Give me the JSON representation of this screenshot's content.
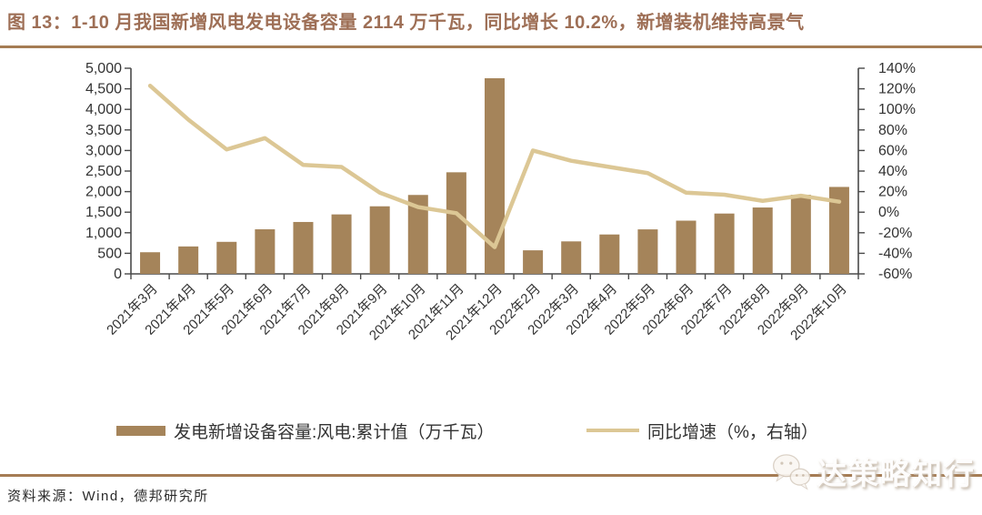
{
  "title": "图 13：1-10 月我国新增风电发电设备容量 2114 万千瓦，同比增长 10.2%，新增装机维持高景气",
  "colors": {
    "bar": "#A5845A",
    "line": "#DCC795",
    "title_text": "#9E6F56",
    "rule": "#A57C54",
    "axis": "#4a4a4a",
    "text": "#333333"
  },
  "legend": {
    "bar_label": "发电新增设备容量:风电:累计值（万千瓦）",
    "line_label": "同比增速（%，右轴）"
  },
  "footer": {
    "source": "资料来源：Wind，德邦研究所"
  },
  "watermark": {
    "text": "达策略知行",
    "icon": "wechat-icon"
  },
  "chart_data": {
    "type": "bar",
    "subtype": "dual-axis bar + line",
    "categories": [
      "2021年3月",
      "2021年4月",
      "2021年5月",
      "2021年6月",
      "2021年7月",
      "2021年8月",
      "2021年9月",
      "2021年10月",
      "2021年11月",
      "2021年12月",
      "2022年2月",
      "2022年3月",
      "2022年4月",
      "2022年5月",
      "2022年6月",
      "2022年7月",
      "2022年8月",
      "2022年9月",
      "2022年10月"
    ],
    "series": [
      {
        "name": "发电新增设备容量:风电:累计值（万千瓦）",
        "type": "bar",
        "axis": "left",
        "values": [
          526,
          667,
          779,
          1084,
          1262,
          1446,
          1643,
          1919,
          2470,
          4757,
          573,
          790,
          958,
          1082,
          1294,
          1467,
          1614,
          1924,
          2114
        ]
      },
      {
        "name": "同比增速（%，右轴）",
        "type": "line",
        "axis": "right",
        "values": [
          123,
          90,
          61,
          72,
          46,
          44,
          19,
          5,
          -1,
          -34,
          60,
          50,
          44,
          38,
          19,
          17,
          11,
          16,
          10.2
        ]
      }
    ],
    "left_axis": {
      "min": 0,
      "max": 5000,
      "step": 500,
      "tick_labels": [
        "0",
        "500",
        "1,000",
        "1,500",
        "2,000",
        "2,500",
        "3,000",
        "3,500",
        "4,000",
        "4,500",
        "5,000"
      ]
    },
    "right_axis": {
      "min": -60,
      "max": 140,
      "step": 20,
      "tick_labels": [
        "-60%",
        "-40%",
        "-20%",
        "0%",
        "20%",
        "40%",
        "60%",
        "80%",
        "100%",
        "120%",
        "140%"
      ]
    },
    "grid": "off",
    "legend_position": "bottom"
  }
}
